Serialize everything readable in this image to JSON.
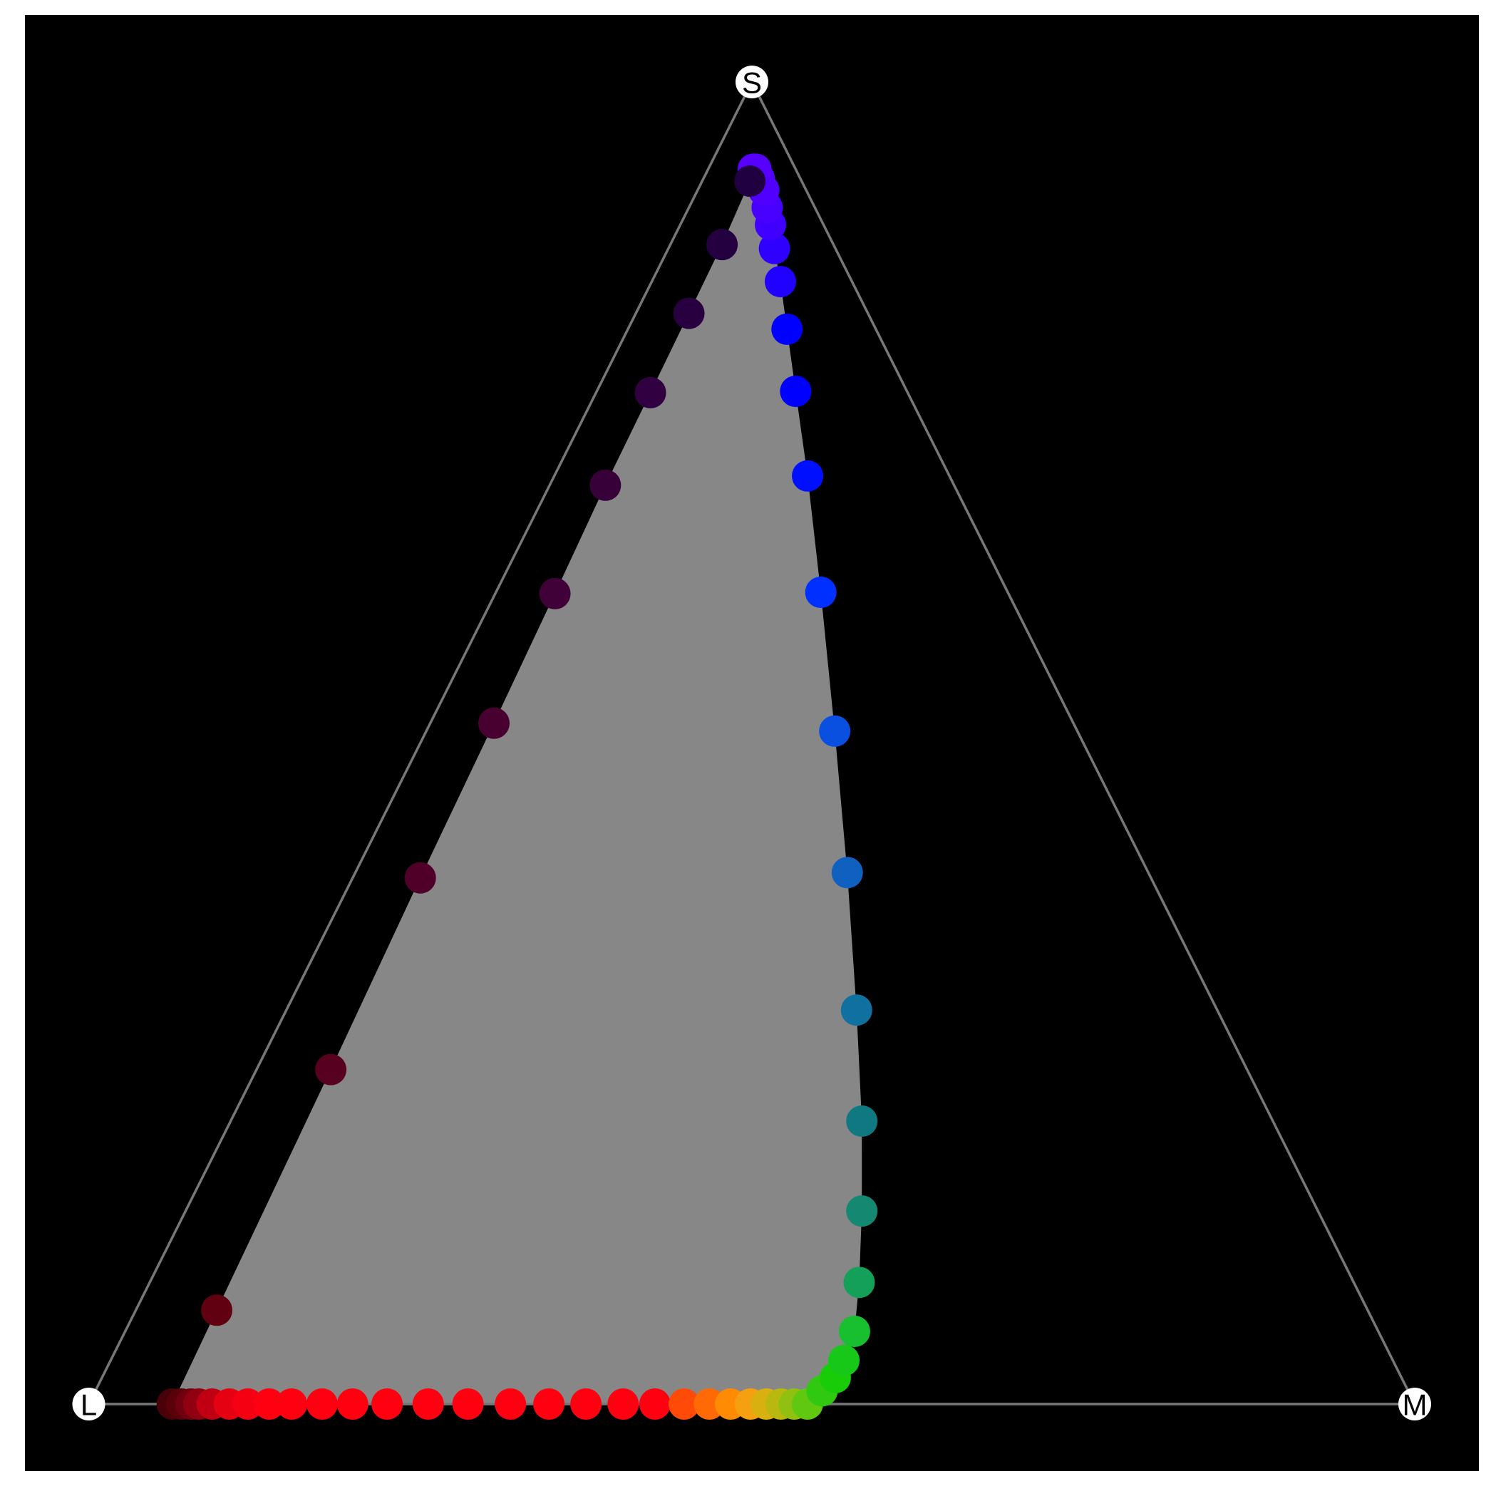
{
  "chart_data": {
    "type": "ternary",
    "corners": [
      "L",
      "M",
      "S"
    ],
    "s": [
      0,
      0,
      0,
      0,
      0,
      0,
      0,
      0,
      0,
      0,
      0,
      0,
      0,
      0,
      0,
      0,
      0,
      0,
      0,
      0,
      0,
      0,
      0,
      0,
      0,
      0,
      0,
      0.01,
      0.02,
      0.033,
      0.055,
      0.092,
      0.146,
      0.214,
      0.298,
      0.402,
      0.509,
      0.614,
      0.702,
      0.766,
      0.813,
      0.849,
      0.874,
      0.892,
      0.905,
      0.918,
      0.927,
      0.934,
      0.934,
      0.925,
      0.877,
      0.825,
      0.765,
      0.695,
      0.613,
      0.515,
      0.398,
      0.253,
      0.071
    ],
    "m": [
      0.063,
      0.07,
      0.077,
      0.083,
      0.093,
      0.106,
      0.12,
      0.136,
      0.153,
      0.176,
      0.199,
      0.225,
      0.256,
      0.286,
      0.318,
      0.347,
      0.375,
      0.403,
      0.427,
      0.449,
      0.468,
      0.484,
      0.499,
      0.511,
      0.522,
      0.532,
      0.542,
      0.548,
      0.553,
      0.553,
      0.55,
      0.535,
      0.51,
      0.476,
      0.43,
      0.371,
      0.308,
      0.245,
      0.191,
      0.15,
      0.12,
      0.097,
      0.08,
      0.068,
      0.059,
      0.05,
      0.042,
      0.036,
      0.034,
      0.036,
      0.039,
      0.04,
      0.041,
      0.042,
      0.045,
      0.048,
      0.051,
      0.056,
      0.061
    ],
    "colors": [
      "#4a0008",
      "#5a0008",
      "#700010",
      "#900010",
      "#c00012",
      "#e50012",
      "#f50012",
      "#ff0010",
      "#ff0010",
      "#ff0010",
      "#ff0010",
      "#ff0010",
      "#ff0010",
      "#ff0010",
      "#ff0010",
      "#ff0010",
      "#ff0010",
      "#ff0010",
      "#ff0010",
      "#ff4a08",
      "#ff6a06",
      "#ff8a04",
      "#f5a010",
      "#d8b010",
      "#b8b810",
      "#90c010",
      "#60c810",
      "#30c810",
      "#18cc08",
      "#18c818",
      "#18c030",
      "#14a058",
      "#148870",
      "#107880",
      "#1070a0",
      "#1060c0",
      "#0a50e0",
      "#0030ff",
      "#0010ff",
      "#0000ff",
      "#0000ff",
      "#2000ff",
      "#3000ff",
      "#4000ff",
      "#4800ff",
      "#5000ff",
      "#5000ff",
      "#5800ff",
      "#5800ff",
      "#200040",
      "#240040",
      "#280040",
      "#300040",
      "#380038",
      "#400038",
      "#480030",
      "#500028",
      "#580020",
      "#600010"
    ]
  }
}
